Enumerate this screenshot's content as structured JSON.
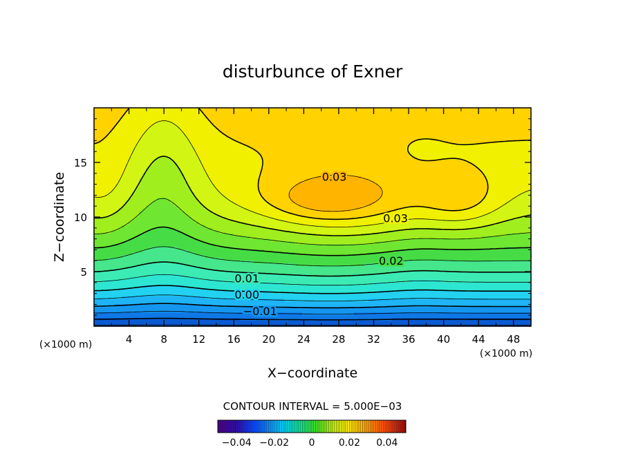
{
  "chart_data": {
    "type": "contour",
    "title": "disturbunce of Exner",
    "xlabel": "X−coordinate",
    "ylabel": "Z−coordinate",
    "x_unit": "(×1000 m)",
    "y_unit": "(×1000 m)",
    "xlim": [
      0,
      50
    ],
    "ylim": [
      0,
      20
    ],
    "x_ticks": [
      "4",
      "8",
      "12",
      "16",
      "20",
      "24",
      "28",
      "32",
      "36",
      "40",
      "44",
      "48"
    ],
    "x_tick_values": [
      4,
      8,
      12,
      16,
      20,
      24,
      28,
      32,
      36,
      40,
      44,
      48
    ],
    "y_ticks": [
      "5",
      "10",
      "15"
    ],
    "y_tick_values": [
      5,
      10,
      15
    ],
    "contour_interval_text": "CONTOUR INTERVAL = 5.000E−03",
    "contour_labels": [
      {
        "text": "0.03",
        "x": 27.5,
        "y": 13.7
      },
      {
        "text": "0.03",
        "x": 34.5,
        "y": 9.9
      },
      {
        "text": "0.02",
        "x": 34.0,
        "y": 6.0
      },
      {
        "text": "0.01",
        "x": 17.5,
        "y": 4.4
      },
      {
        "text": "0.00",
        "x": 17.5,
        "y": 2.9
      },
      {
        "text": "−0.01",
        "x": 19.0,
        "y": 1.4
      }
    ],
    "colorbar": {
      "range": [
        -0.05,
        0.05
      ],
      "tick_labels": [
        "−0.04",
        "−0.02",
        "0",
        "0.02",
        "0.04"
      ],
      "tick_values": [
        -0.04,
        -0.02,
        0,
        0.02,
        0.04
      ]
    },
    "bands": [
      {
        "lower": -0.045,
        "color": "#0a5ad2"
      },
      {
        "lower": -0.04,
        "color": "#0f78e6"
      },
      {
        "lower": -0.035,
        "color": "#1496f0"
      },
      {
        "lower": -0.03,
        "color": "#1eb4f5"
      },
      {
        "lower": -0.025,
        "color": "#22d2f0"
      },
      {
        "lower": -0.02,
        "color": "#2de6d2"
      },
      {
        "lower": -0.015,
        "color": "#3cebb4"
      },
      {
        "lower": -0.01,
        "color": "#46e68c"
      },
      {
        "lower": -0.005,
        "color": "#46dc46"
      },
      {
        "lower": 0.0,
        "color": "#6ee632"
      },
      {
        "lower": 0.005,
        "color": "#a0ee1e"
      },
      {
        "lower": 0.01,
        "color": "#d2f514"
      },
      {
        "lower": 0.015,
        "color": "#f0f000"
      },
      {
        "lower": 0.02,
        "color": "#ffd200"
      },
      {
        "lower": 0.025,
        "color": "#ffb400"
      },
      {
        "lower": 0.03,
        "color": "#ff9600"
      },
      {
        "lower": 0.035,
        "color": "#ff7800"
      },
      {
        "lower": 0.04,
        "color": "#ff5a00"
      }
    ]
  }
}
